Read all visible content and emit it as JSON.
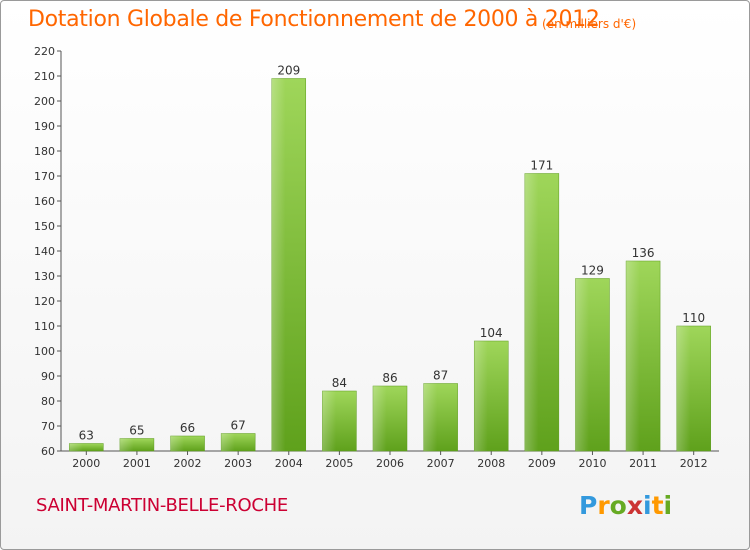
{
  "chart_data": {
    "type": "bar",
    "title": "Dotation Globale de Fonctionnement de 2000 à 2012",
    "subtitle": "(en milliers d'€)",
    "categories": [
      "2000",
      "2001",
      "2002",
      "2003",
      "2004",
      "2005",
      "2006",
      "2007",
      "2008",
      "2009",
      "2010",
      "2011",
      "2012"
    ],
    "values": [
      63,
      65,
      66,
      67,
      209,
      84,
      86,
      87,
      104,
      171,
      129,
      136,
      110
    ],
    "xlabel": "",
    "ylabel": "",
    "ylim": [
      60,
      220
    ],
    "yticks": [
      60,
      70,
      80,
      90,
      100,
      110,
      120,
      130,
      140,
      150,
      160,
      170,
      180,
      190,
      200,
      210,
      220
    ],
    "grid": false,
    "bar_color": "#7cc242"
  },
  "footer": {
    "commune": "SAINT-MARTIN-BELLE-ROCHE",
    "logo_text": "Proxiti",
    "logo_colors": [
      "#3399dd",
      "#ff9900",
      "#66aa22",
      "#cc3333",
      "#3399dd",
      "#ff9900",
      "#66aa22"
    ]
  }
}
